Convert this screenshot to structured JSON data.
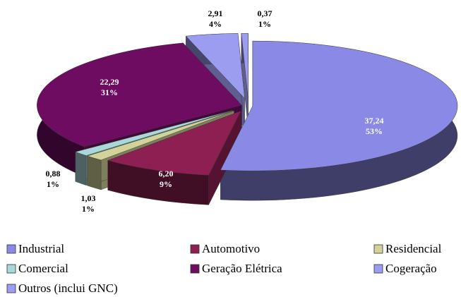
{
  "chart_data": {
    "type": "pie3d",
    "categories": [
      "Industrial",
      "Automotivo",
      "Residencial",
      "Comercial",
      "Geração Elétrica",
      "Cogeração",
      "Outros (inclui GNC)"
    ],
    "values": [
      37.24,
      6.2,
      1.03,
      0.88,
      22.29,
      2.91,
      0.37
    ],
    "value_labels": [
      "37,24",
      "6,20",
      "1,03",
      "0,88",
      "22,29",
      "2,91",
      "0,37"
    ],
    "percent": [
      53,
      9,
      1,
      1,
      31,
      4,
      1
    ],
    "percent_labels": [
      "53%",
      "9%",
      "1%",
      "1%",
      "31%",
      "4%",
      "1%"
    ],
    "colors": [
      "#8a8ae6",
      "#8e1f52",
      "#d2d29a",
      "#a8d8d8",
      "#6e0c62",
      "#9c9cf0",
      "#9c9cf0"
    ]
  }
}
